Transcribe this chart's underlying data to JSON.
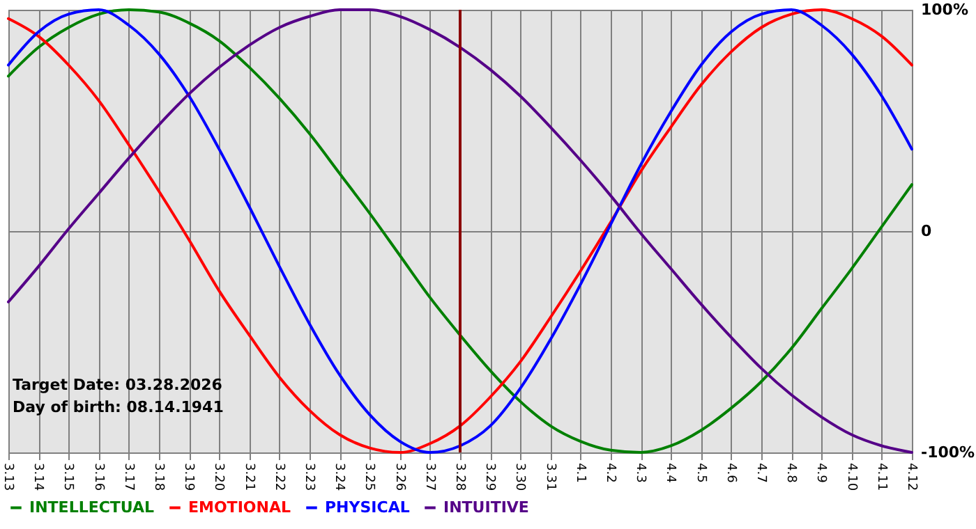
{
  "chart_data": {
    "type": "line",
    "categories": [
      "3.13",
      "3.14",
      "3.15",
      "3.16",
      "3.17",
      "3.18",
      "3.19",
      "3.20",
      "3.21",
      "3.22",
      "3.23",
      "3.24",
      "3.25",
      "3.26",
      "3.27",
      "3.28",
      "3.29",
      "3.30",
      "3.31",
      "4.1",
      "4.2",
      "4.3",
      "4.4",
      "4.5",
      "4.6",
      "4.7",
      "4.8",
      "4.9",
      "4.10",
      "4.11",
      "4.12"
    ],
    "series": [
      {
        "name": "INTELLECTUAL",
        "color": "#008000",
        "values": [
          70,
          83,
          92,
          98,
          100,
          99,
          94,
          86,
          74,
          60,
          44,
          26,
          8,
          -11,
          -30,
          -47,
          -63,
          -77,
          -88,
          -95,
          -99,
          -100,
          -97,
          -90,
          -80,
          -68,
          -53,
          -35,
          -17,
          2,
          21
        ]
      },
      {
        "name": "EMOTIONAL",
        "color": "#ff0000",
        "values": [
          96,
          88,
          75,
          59,
          39,
          18,
          -4,
          -27,
          -47,
          -66,
          -81,
          -92,
          -98,
          -100,
          -96,
          -88,
          -75,
          -59,
          -39,
          -18,
          4,
          27,
          47,
          66,
          81,
          92,
          98,
          100,
          96,
          88,
          75
        ]
      },
      {
        "name": "PHYSICAL",
        "color": "#0000ff",
        "values": [
          75,
          90,
          98,
          100,
          93,
          80,
          61,
          37,
          11,
          -16,
          -42,
          -65,
          -83,
          -95,
          -100,
          -97,
          -88,
          -71,
          -49,
          -24,
          3,
          30,
          54,
          75,
          90,
          98,
          100,
          93,
          80,
          61,
          37
        ]
      },
      {
        "name": "INTUITIVE",
        "color": "#550088",
        "values": [
          -32,
          -16,
          1,
          17,
          33,
          48,
          62,
          74,
          84,
          92,
          97,
          100,
          100,
          97,
          91,
          83,
          73,
          61,
          47,
          32,
          16,
          -1,
          -17,
          -33,
          -48,
          -62,
          -74,
          -84,
          -92,
          -97,
          -100
        ]
      }
    ],
    "ylim": [
      -100,
      100
    ],
    "yticks": [
      {
        "value": -100,
        "label": "-100%"
      },
      0,
      {
        "value": 100,
        "label": "100%"
      }
    ],
    "grid": true,
    "legend": "bottom",
    "line_style": "solid",
    "ref_lines": [
      {
        "axis": "x",
        "value": "3.28",
        "color": "#8b0000"
      }
    ],
    "annotations": [
      "Target Date: 03.28.2026",
      "Day of birth: 08.14.1941"
    ]
  }
}
